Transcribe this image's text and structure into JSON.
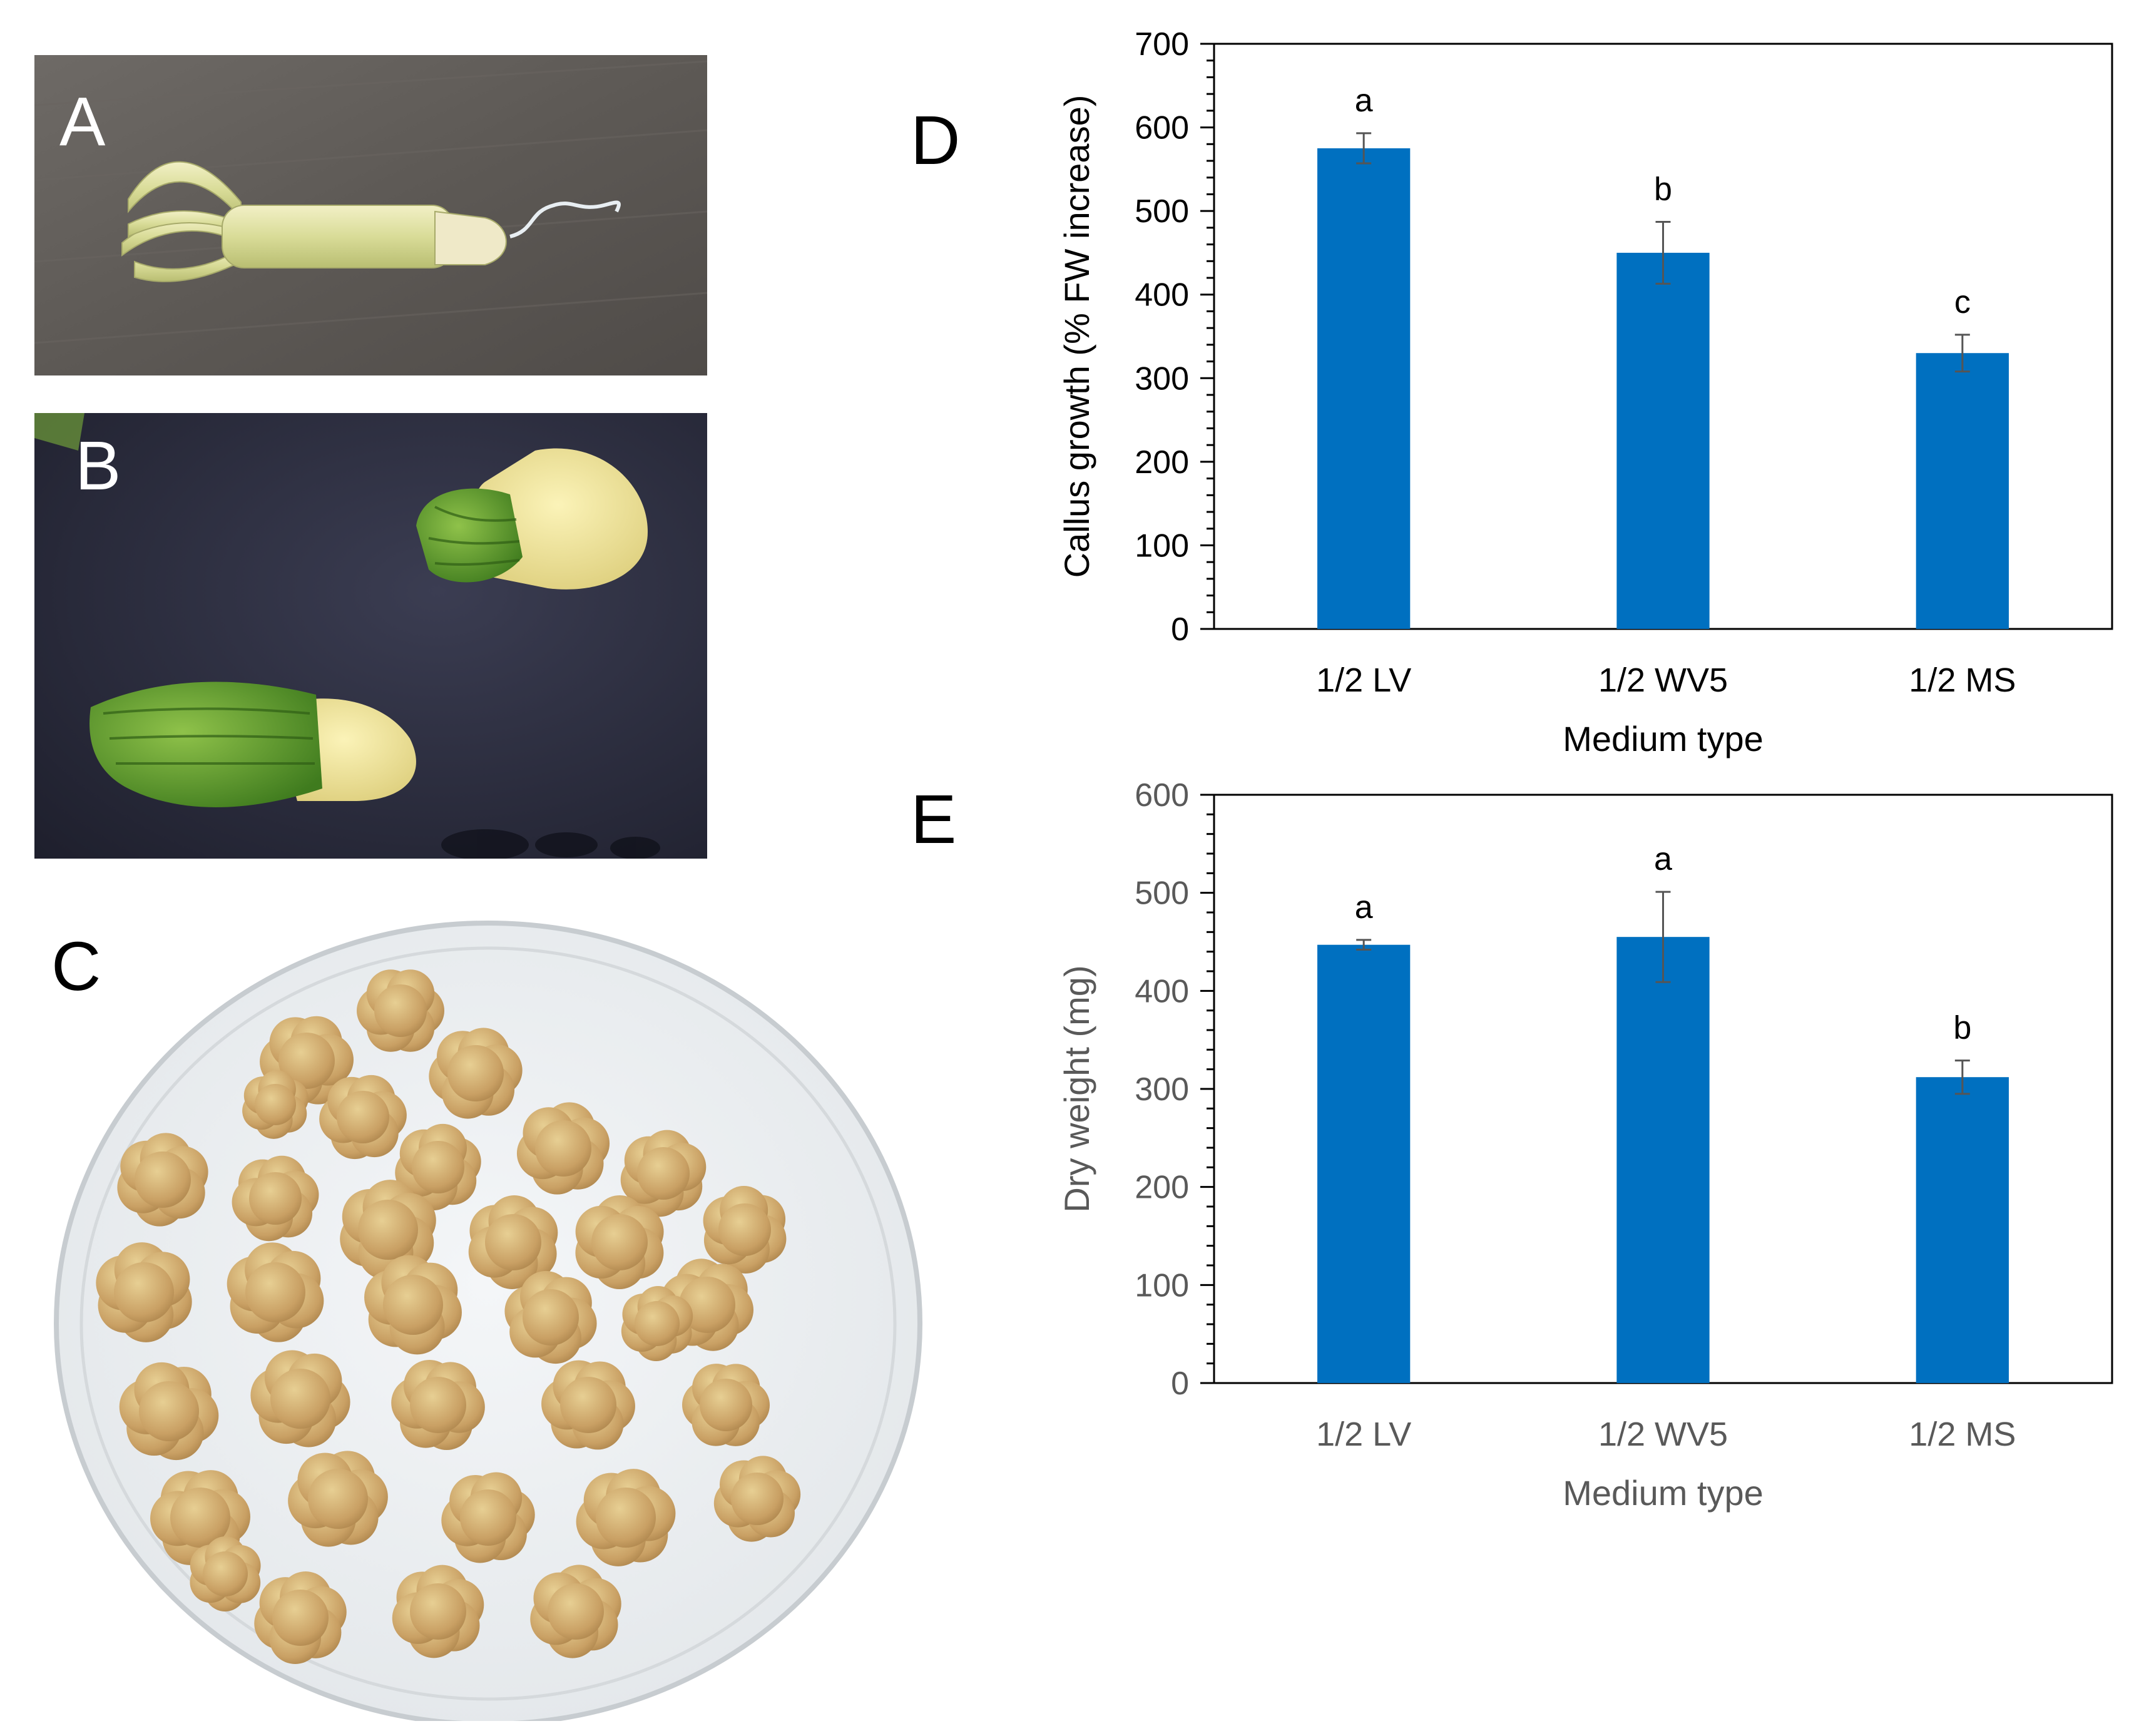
{
  "panels": {
    "a": {
      "label": "A"
    },
    "b": {
      "label": "B"
    },
    "c": {
      "label": "C"
    },
    "d": {
      "label": "D"
    },
    "e": {
      "label": "E"
    }
  },
  "colors": {
    "bar": "#0070C0",
    "axis": "#000000",
    "error_bar": "#555555",
    "chart_d_text": "#000000",
    "chart_e_text": "#595959"
  },
  "chart_data": [
    {
      "panel": "D",
      "type": "bar",
      "categories": [
        "1/2 LV",
        "1/2 WV5",
        "1/2 MS"
      ],
      "values": [
        575,
        450,
        330
      ],
      "error": [
        18,
        37,
        22
      ],
      "letters": [
        "a",
        "b",
        "c"
      ],
      "xlabel": "Medium type",
      "ylabel": "Callus growth (% FW increase)",
      "ylim": [
        0,
        700
      ],
      "yticks": [
        0,
        100,
        200,
        300,
        400,
        500,
        600,
        700
      ],
      "minor_tick_step": 20,
      "grid": false
    },
    {
      "panel": "E",
      "type": "bar",
      "categories": [
        "1/2 LV",
        "1/2 WV5",
        "1/2 MS"
      ],
      "values": [
        447,
        455,
        312
      ],
      "error": [
        5,
        46,
        17
      ],
      "letters": [
        "a",
        "a",
        "b"
      ],
      "xlabel": "Medium type",
      "ylabel": "Dry weight (mg)",
      "ylim": [
        0,
        600
      ],
      "yticks": [
        0,
        100,
        200,
        300,
        400,
        500,
        600
      ],
      "minor_tick_step": 20,
      "grid": false
    }
  ]
}
